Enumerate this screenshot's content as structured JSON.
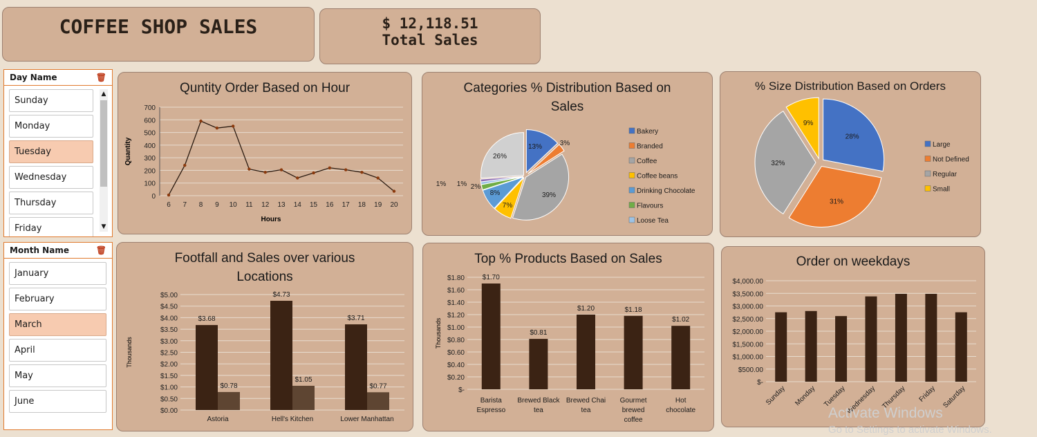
{
  "header": {
    "title": "COFFEE SHOP SALES",
    "total_value": "$ 12,118.51",
    "total_label": "Total Sales"
  },
  "day_slicer": {
    "title": "Day Name",
    "items": [
      "Sunday",
      "Monday",
      "Tuesday",
      "Wednesday",
      "Thursday",
      "Friday"
    ],
    "selected": "Tuesday"
  },
  "month_slicer": {
    "title": "Month Name",
    "items": [
      "January",
      "February",
      "March",
      "April",
      "May",
      "June"
    ],
    "selected": "March"
  },
  "watermark": {
    "line1": "Activate Windows",
    "line2": "Go to Settings to activate Windows."
  },
  "chart_data": [
    {
      "id": "hour",
      "type": "line",
      "title": "Quntity Order Based on Hour",
      "xlabel": "Hours",
      "ylabel": "Quantity",
      "x": [
        6,
        7,
        8,
        9,
        10,
        11,
        12,
        13,
        14,
        15,
        16,
        17,
        18,
        19,
        20
      ],
      "values": [
        5,
        240,
        590,
        535,
        550,
        210,
        185,
        205,
        140,
        180,
        220,
        205,
        185,
        140,
        35
      ],
      "ylim": [
        0,
        700
      ],
      "yticks": [
        "0",
        "100",
        "200",
        "300",
        "400",
        "500",
        "600",
        "700"
      ],
      "color": "#8b3a0e"
    },
    {
      "id": "categories",
      "type": "pie",
      "title": "Categories % Distribution Based on Sales",
      "slices": [
        {
          "name": "Bakery",
          "value": 13,
          "label": "13%",
          "color": "#4472c4"
        },
        {
          "name": "Branded",
          "value": 3,
          "label": "3%",
          "color": "#ed7d31"
        },
        {
          "name": "Coffee",
          "value": 39,
          "label": "39%",
          "color": "#a5a5a5"
        },
        {
          "name": "Coffee beans",
          "value": 7,
          "label": "7%",
          "color": "#ffc000"
        },
        {
          "name": "Drinking Chocolate",
          "value": 8,
          "label": "8%",
          "color": "#5b9bd5"
        },
        {
          "name": "Flavours",
          "value": 2,
          "label": "2%",
          "color": "#70ad47"
        },
        {
          "name": "Loose Tea",
          "value": 1,
          "label": "1%",
          "color": "#9dc3e6"
        },
        {
          "name": "",
          "value": 1,
          "label": "1%",
          "color": "#8e6fb5"
        },
        {
          "name": "",
          "value": 26,
          "label": "26%",
          "color": "#d0d0d0"
        }
      ],
      "legend": [
        "Bakery",
        "Branded",
        "Coffee",
        "Coffee beans",
        "Drinking Chocolate",
        "Flavours",
        "Loose Tea"
      ],
      "legend_colors": [
        "#4472c4",
        "#ed7d31",
        "#a5a5a5",
        "#ffc000",
        "#5b9bd5",
        "#70ad47",
        "#9dc3e6"
      ]
    },
    {
      "id": "size",
      "type": "pie",
      "title": "% Size Distribution Based on Orders",
      "slices": [
        {
          "name": "Large",
          "value": 28,
          "label": "28%",
          "color": "#4472c4"
        },
        {
          "name": "Not Defined",
          "value": 31,
          "label": "31%",
          "color": "#ed7d31"
        },
        {
          "name": "Regular",
          "value": 32,
          "label": "32%",
          "color": "#a5a5a5"
        },
        {
          "name": "Small",
          "value": 9,
          "label": "9%",
          "color": "#ffc000"
        }
      ],
      "legend": [
        "Large",
        "Not Defined",
        "Regular",
        "Small"
      ],
      "legend_colors": [
        "#4472c4",
        "#ed7d31",
        "#a5a5a5",
        "#ffc000"
      ]
    },
    {
      "id": "locations",
      "type": "bar",
      "title": "Footfall and Sales over various Locations",
      "ylabel": "Thousands",
      "categories": [
        "Astoria",
        "Hell's Kitchen",
        "Lower Manhattan"
      ],
      "series": [
        {
          "values": [
            3.68,
            4.73,
            3.71
          ],
          "labels": [
            "$3.68",
            "$4.73",
            "$3.71"
          ],
          "color": "#3b2314"
        },
        {
          "values": [
            0.78,
            1.05,
            0.77
          ],
          "labels": [
            "$0.78",
            "$1.05",
            "$0.77"
          ],
          "color": "#5e4532"
        }
      ],
      "ylim": [
        0,
        5
      ],
      "yticks": [
        "$0.00",
        "$0.50",
        "$1.00",
        "$1.50",
        "$2.00",
        "$2.50",
        "$3.00",
        "$3.50",
        "$4.00",
        "$4.50",
        "$5.00"
      ]
    },
    {
      "id": "products",
      "type": "bar",
      "title": "Top % Products Based on Sales",
      "ylabel": "Thousands",
      "categories": [
        "Barista Espresso",
        "Brewed Black tea",
        "Brewed Chai tea",
        "Gourmet brewed coffee",
        "Hot chocolate"
      ],
      "category_lines": [
        [
          "Barista",
          "Espresso"
        ],
        [
          "Brewed Black",
          "tea"
        ],
        [
          "Brewed Chai",
          "tea"
        ],
        [
          "Gourmet",
          "brewed",
          "coffee"
        ],
        [
          "Hot",
          "chocolate"
        ]
      ],
      "values": [
        1.7,
        0.81,
        1.2,
        1.18,
        1.02
      ],
      "labels": [
        "$1.70",
        "$0.81",
        "$1.20",
        "$1.18",
        "$1.02"
      ],
      "ylim": [
        0,
        1.8
      ],
      "yticks": [
        "$-",
        "$0.20",
        "$0.40",
        "$0.60",
        "$0.80",
        "$1.00",
        "$1.20",
        "$1.40",
        "$1.60",
        "$1.80"
      ],
      "color": "#3b2314"
    },
    {
      "id": "weekdays",
      "type": "bar",
      "title": "Order on weekdays",
      "categories": [
        "Sunday",
        "Monday",
        "Tuesday",
        "Wednesday",
        "Thursday",
        "Friday",
        "Saturday"
      ],
      "values": [
        2750,
        2800,
        2600,
        3380,
        3480,
        3480,
        2750
      ],
      "ylim": [
        0,
        4000
      ],
      "yticks": [
        "$-",
        "$500.00",
        "$1,000.00",
        "$1,500.00",
        "$2,000.00",
        "$2,500.00",
        "$3,000.00",
        "$3,500.00",
        "$4,000.00"
      ],
      "color": "#3b2314"
    }
  ]
}
